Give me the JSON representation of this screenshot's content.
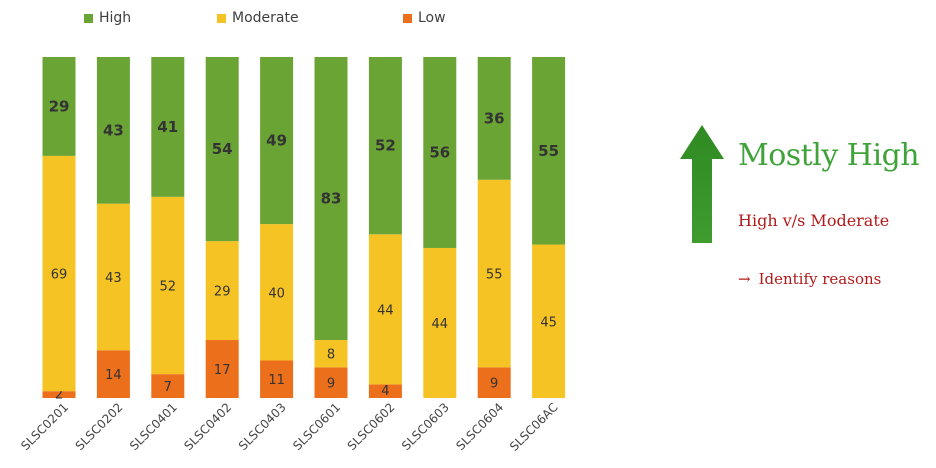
{
  "legend": {
    "high_label": "High",
    "moderate_label": "Moderate",
    "low_label": "Low"
  },
  "colors": {
    "high": "#6aa434",
    "moderate": "#f6c324",
    "low": "#ec6f1b",
    "accent_green": "#3fa33a",
    "accent_red": "#b21a1a"
  },
  "side_panel": {
    "headline": "Mostly High",
    "comparison": "High v/s Moderate",
    "arrow_glyph": "→",
    "action": "Identify reasons",
    "arrow_icon": "up-arrow-icon"
  },
  "chart_data": {
    "type": "bar",
    "stacked": true,
    "normalized": true,
    "categories": [
      "SLSC0201",
      "SLSC0202",
      "SLSC0401",
      "SLSC0402",
      "SLSC0403",
      "SLSC0601",
      "SLSC0602",
      "SLSC0603",
      "SLSC0604",
      "SLSC06AC"
    ],
    "series": [
      {
        "name": "Low",
        "color": "#ec6f1b",
        "values": [
          2,
          14,
          7,
          17,
          11,
          9,
          4,
          0,
          9,
          0
        ]
      },
      {
        "name": "Moderate",
        "color": "#f6c324",
        "values": [
          69,
          43,
          52,
          29,
          40,
          8,
          44,
          44,
          55,
          45
        ]
      },
      {
        "name": "High",
        "color": "#6aa434",
        "values": [
          29,
          43,
          41,
          54,
          49,
          83,
          52,
          56,
          36,
          55
        ]
      }
    ],
    "title": "",
    "xlabel": "",
    "ylabel": "",
    "legend_position": "top",
    "grid": false
  }
}
